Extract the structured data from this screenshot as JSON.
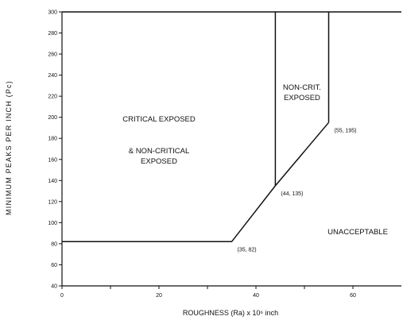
{
  "chart_data": {
    "type": "line",
    "title": "",
    "xlabel": "ROUGHNESS (Ra) x 10⁶ inch",
    "ylabel": "MINIMUM PEAKS PER INCH (Pc)",
    "xlim": [
      0,
      70
    ],
    "ylim": [
      40,
      300
    ],
    "x_ticks": [
      {
        "value": 0,
        "label": "0"
      },
      {
        "value": 10,
        "label": ""
      },
      {
        "value": 20,
        "label": "20"
      },
      {
        "value": 30,
        "label": ""
      },
      {
        "value": 40,
        "label": "40"
      },
      {
        "value": 50,
        "label": ""
      },
      {
        "value": 60,
        "label": "60"
      }
    ],
    "y_ticks": [
      {
        "value": 40,
        "label": "40"
      },
      {
        "value": 60,
        "label": "60"
      },
      {
        "value": 80,
        "label": "80"
      },
      {
        "value": 100,
        "label": "100"
      },
      {
        "value": 120,
        "label": "120"
      },
      {
        "value": 140,
        "label": "140"
      },
      {
        "value": 160,
        "label": "160"
      },
      {
        "value": 180,
        "label": "180"
      },
      {
        "value": 200,
        "label": "200"
      },
      {
        "value": 220,
        "label": "220"
      },
      {
        "value": 240,
        "label": "240"
      },
      {
        "value": 260,
        "label": "260"
      },
      {
        "value": 280,
        "label": "280"
      },
      {
        "value": 300,
        "label": "300"
      }
    ],
    "boundaries": [
      {
        "name": "lower-boundary",
        "points": [
          [
            0,
            82
          ],
          [
            35,
            82
          ],
          [
            44,
            135
          ],
          [
            55,
            195
          ]
        ]
      },
      {
        "name": "critical-divider",
        "points": [
          [
            44,
            135
          ],
          [
            44,
            300
          ]
        ]
      },
      {
        "name": "non-critical-divider",
        "points": [
          [
            55,
            195
          ],
          [
            55,
            300
          ]
        ]
      },
      {
        "name": "top-border",
        "points": [
          [
            0,
            300
          ],
          [
            70,
            300
          ]
        ]
      }
    ],
    "point_labels": [
      {
        "x": 35,
        "y": 82,
        "label": "(35, 82)"
      },
      {
        "x": 44,
        "y": 135,
        "label": "(44, 135)"
      },
      {
        "x": 55,
        "y": 195,
        "label": "(55, 195)"
      }
    ],
    "regions": [
      {
        "lines": [
          "CRITICAL EXPOSED"
        ],
        "x": 20,
        "y": 196
      },
      {
        "lines": [
          "& NON-CRITICAL",
          "EXPOSED"
        ],
        "x": 20,
        "y": 166
      },
      {
        "lines": [
          "NON-CRIT.",
          "EXPOSED"
        ],
        "x": 49.5,
        "y": 226
      },
      {
        "lines": [
          "UNACCEPTABLE"
        ],
        "x": 61,
        "y": 89
      }
    ]
  }
}
